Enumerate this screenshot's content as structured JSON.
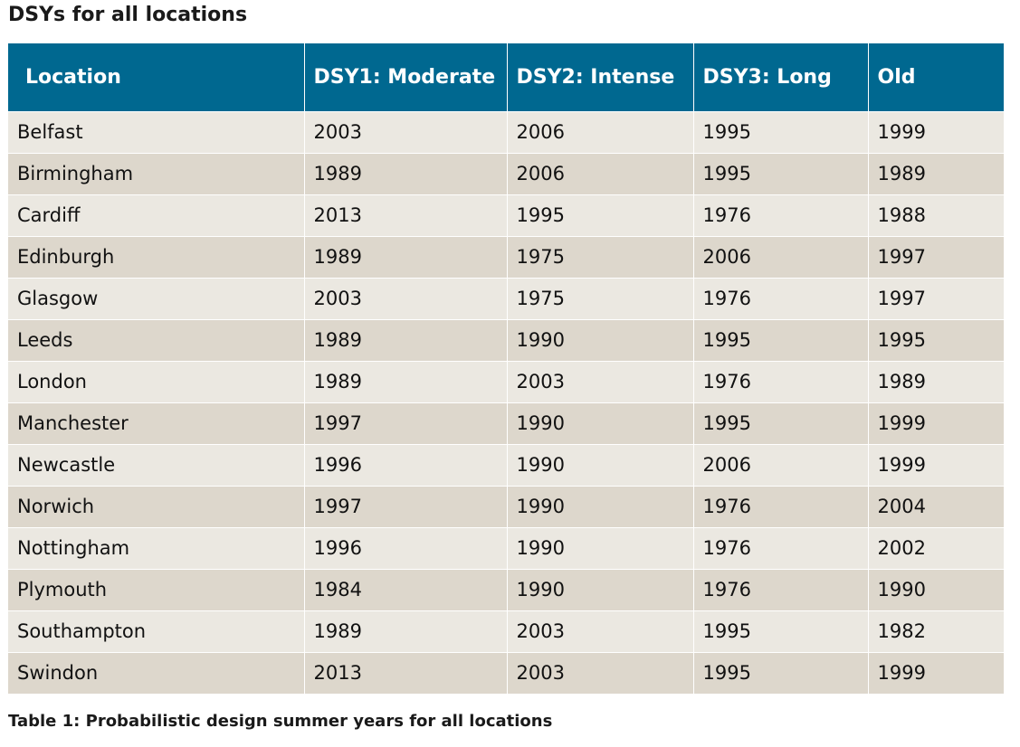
{
  "title": "DSYs for all locations",
  "caption": "Table 1: Probabilistic design summer years for all locations",
  "colors": {
    "header_bg": "#006890",
    "row_odd": "#ebe8e1",
    "row_even": "#ddd7cc"
  },
  "table": {
    "headers": [
      "Location",
      "DSY1: Moderate",
      "DSY2: Intense",
      "DSY3: Long",
      "Old"
    ],
    "rows": [
      [
        "Belfast",
        "2003",
        "2006",
        "1995",
        "1999"
      ],
      [
        "Birmingham",
        "1989",
        "2006",
        "1995",
        "1989"
      ],
      [
        "Cardiff",
        "2013",
        "1995",
        "1976",
        "1988"
      ],
      [
        "Edinburgh",
        "1989",
        "1975",
        "2006",
        "1997"
      ],
      [
        "Glasgow",
        "2003",
        "1975",
        "1976",
        "1997"
      ],
      [
        "Leeds",
        "1989",
        "1990",
        "1995",
        "1995"
      ],
      [
        "London",
        "1989",
        "2003",
        "1976",
        "1989"
      ],
      [
        "Manchester",
        "1997",
        "1990",
        "1995",
        "1999"
      ],
      [
        "Newcastle",
        "1996",
        "1990",
        "2006",
        "1999"
      ],
      [
        "Norwich",
        "1997",
        "1990",
        "1976",
        "2004"
      ],
      [
        "Nottingham",
        "1996",
        "1990",
        "1976",
        "2002"
      ],
      [
        "Plymouth",
        "1984",
        "1990",
        "1976",
        "1990"
      ],
      [
        "Southampton",
        "1989",
        "2003",
        "1995",
        "1982"
      ],
      [
        "Swindon",
        "2013",
        "2003",
        "1995",
        "1999"
      ]
    ]
  }
}
